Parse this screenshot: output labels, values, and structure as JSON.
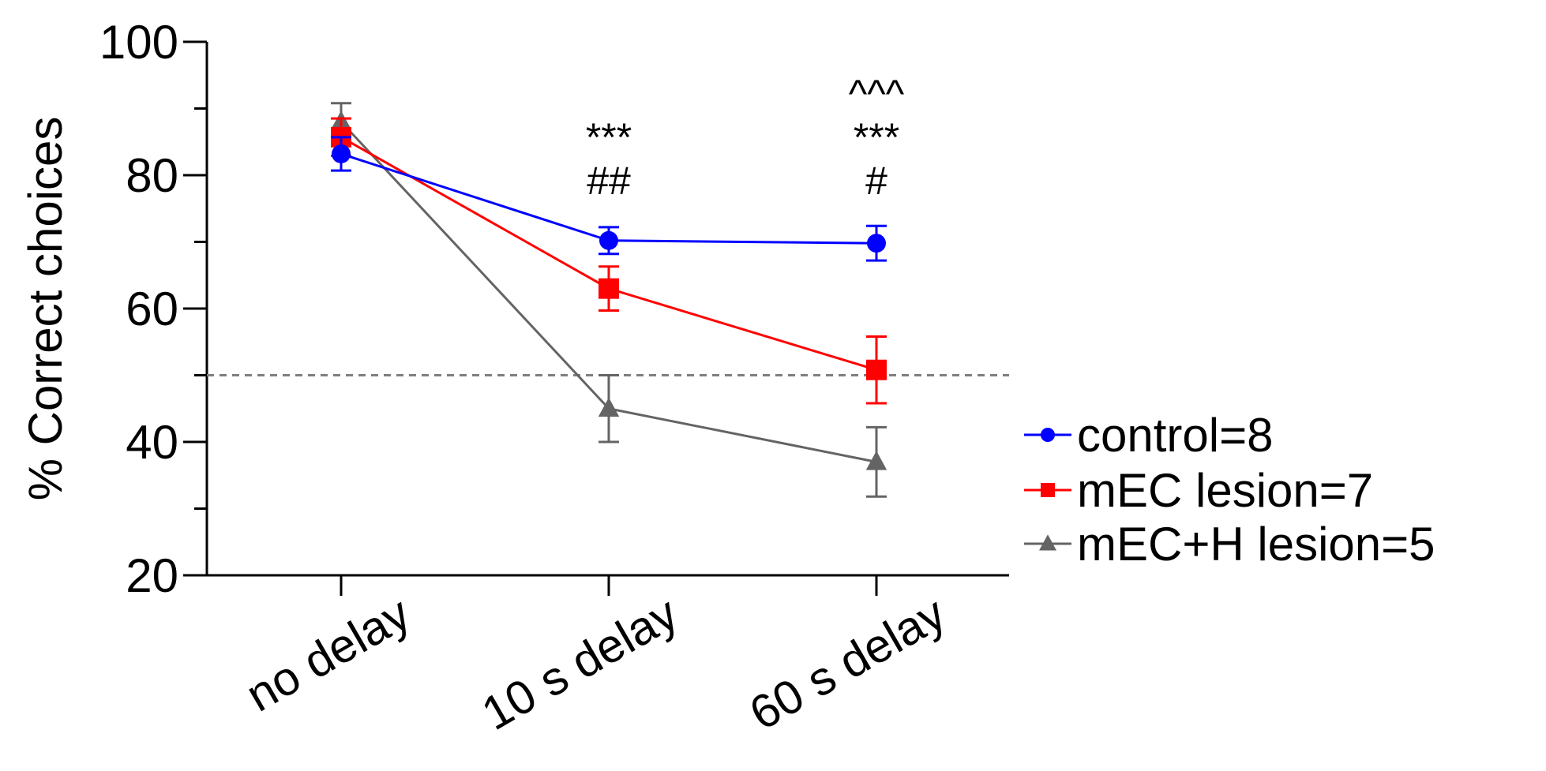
{
  "chart_data": {
    "type": "line",
    "xlabel": "",
    "ylabel": "% Correct choices",
    "ylim": [
      20,
      100
    ],
    "yticks": [
      "20",
      "40",
      "60",
      "80",
      "100"
    ],
    "categories": [
      "no delay",
      "10 s delay",
      "60 s delay"
    ],
    "reference_line": {
      "y": 50,
      "style": "dashed",
      "color": "#7f7f7f"
    },
    "series": [
      {
        "name": "control=8",
        "color": "#0000ff",
        "marker": "circle",
        "values": [
          83.2,
          70.2,
          69.8
        ],
        "errors": [
          2.5,
          2.0,
          2.6
        ]
      },
      {
        "name": "mEC lesion=7",
        "color": "#ff0000",
        "marker": "square",
        "values": [
          85.7,
          63.0,
          50.8
        ],
        "errors": [
          2.8,
          3.3,
          5.0
        ]
      },
      {
        "name": "mEC+H lesion=5",
        "color": "#646464",
        "marker": "triangle",
        "values": [
          88.0,
          45.0,
          37.0
        ],
        "errors": [
          2.8,
          5.0,
          5.2
        ]
      }
    ],
    "annotations": [
      {
        "category_index": 1,
        "lines": [
          "***",
          "##"
        ]
      },
      {
        "category_index": 2,
        "lines": [
          "^^^",
          "***",
          "#"
        ]
      }
    ],
    "legend": {
      "placement": "right"
    },
    "grid": false
  }
}
